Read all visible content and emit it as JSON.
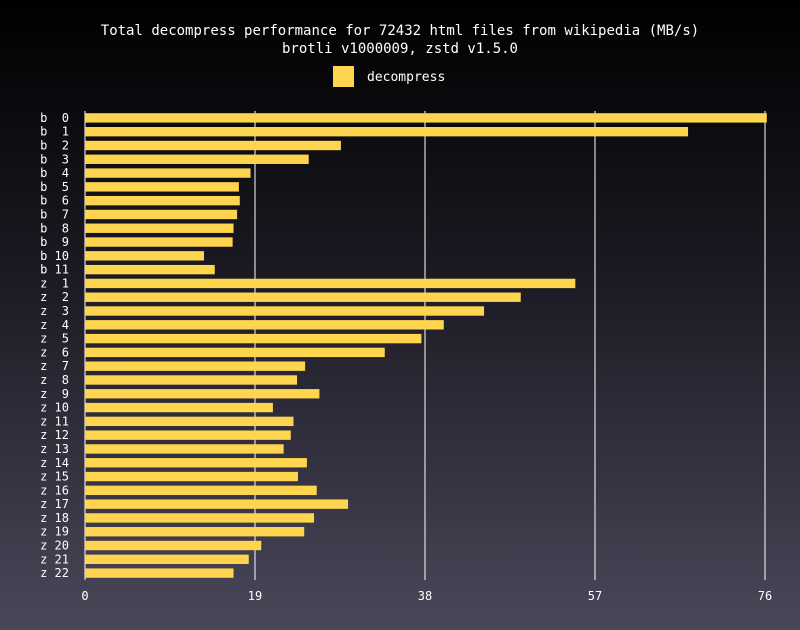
{
  "chart_data": {
    "type": "bar",
    "orientation": "horizontal",
    "title": "Total decompress performance for 72432 html files from wikipedia (MB/s)",
    "subtitle": "brotli v1000009, zstd v1.5.0",
    "legend": [
      {
        "label": "decompress",
        "color": "#ffd54f"
      }
    ],
    "legend_position": "top-center",
    "xlim": [
      0,
      76
    ],
    "xticks": [
      "0",
      "19",
      "38",
      "57",
      "76"
    ],
    "grid": true,
    "categories": [
      "b  0",
      "b  1",
      "b  2",
      "b  3",
      "b  4",
      "b  5",
      "b  6",
      "b  7",
      "b  8",
      "b  9",
      "b 10",
      "b 11",
      "z  1",
      "z  2",
      "z  3",
      "z  4",
      "z  5",
      "z  6",
      "z  7",
      "z  8",
      "z  9",
      "z 10",
      "z 11",
      "z 12",
      "z 13",
      "z 14",
      "z 15",
      "z 16",
      "z 17",
      "z 18",
      "z 19",
      "z 20",
      "z 21",
      "z 22"
    ],
    "series": [
      {
        "name": "decompress",
        "values": [
          76.2,
          67.4,
          28.6,
          25.0,
          18.5,
          17.2,
          17.3,
          17.0,
          16.6,
          16.5,
          13.3,
          14.5,
          54.8,
          48.7,
          44.6,
          40.1,
          37.6,
          33.5,
          24.6,
          23.7,
          26.2,
          21.0,
          23.3,
          23.0,
          22.2,
          24.8,
          23.8,
          25.9,
          29.4,
          25.6,
          24.5,
          19.7,
          18.3,
          16.6
        ]
      }
    ]
  }
}
